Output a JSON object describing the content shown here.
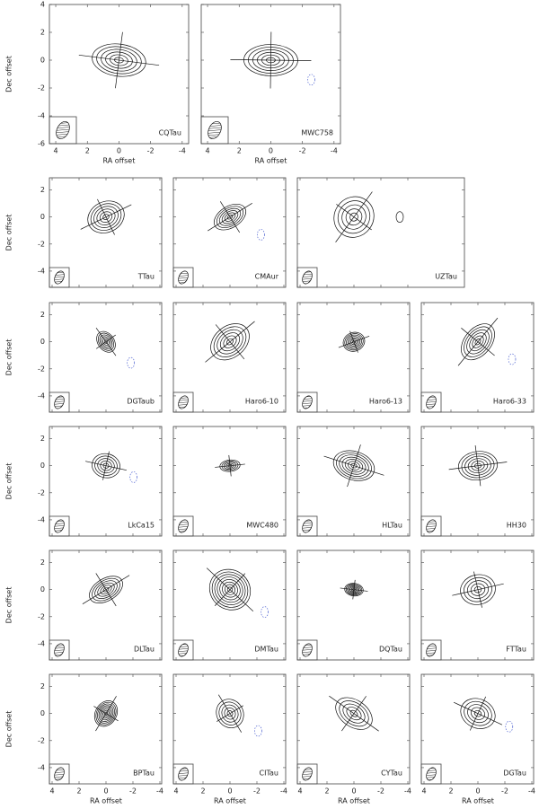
{
  "figure": {
    "x_label": "RA offset",
    "y_label": "Dec offset",
    "top_yticks": [
      4,
      2,
      0,
      -2,
      -4,
      -6
    ],
    "yticks": [
      2,
      0,
      -2,
      -4
    ],
    "xticks": [
      4,
      2,
      0,
      -2,
      -4
    ],
    "rows": [
      {
        "panels": [
          "CQTau",
          "MWC758"
        ]
      },
      {
        "panels": [
          "TTau",
          "CMAur",
          "UZTau"
        ]
      },
      {
        "panels": [
          "DGTaub",
          "Haro6-10",
          "Haro6-13",
          "Haro6-33"
        ]
      },
      {
        "panels": [
          "LkCa15",
          "MWC480",
          "HLTau",
          "HH30"
        ]
      },
      {
        "panels": [
          "DLTau",
          "DMTau",
          "DQTau",
          "FTTau"
        ]
      },
      {
        "panels": [
          "BPTau",
          "CITau",
          "CYTau",
          "DGTau"
        ]
      }
    ]
  }
}
